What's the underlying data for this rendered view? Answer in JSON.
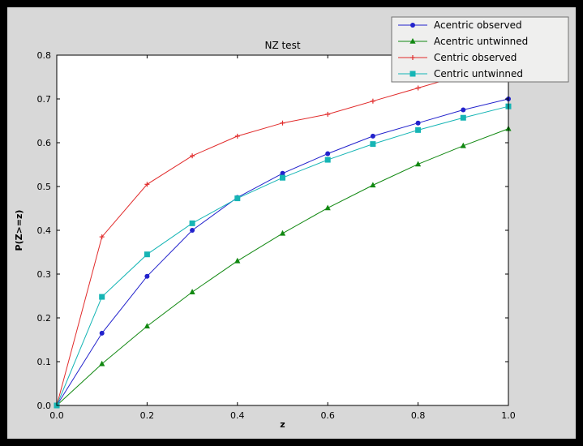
{
  "colors": {
    "frame": "#000000",
    "figure_bg": "#d8d8d8",
    "plot_bg": "#ffffff",
    "axis": "#000000",
    "legend_bg": "#efefee",
    "legend_border": "#707070"
  },
  "chart_data": {
    "type": "line",
    "title": "NZ test",
    "xlabel": "z",
    "ylabel": "P(Z>=z)",
    "xlim": [
      0.0,
      1.0
    ],
    "ylim": [
      0.0,
      0.8
    ],
    "xticks": [
      0.0,
      0.2,
      0.4,
      0.6,
      0.8,
      1.0
    ],
    "yticks": [
      0.0,
      0.1,
      0.2,
      0.3,
      0.4,
      0.5,
      0.6,
      0.7,
      0.8
    ],
    "grid": false,
    "legend_position": "upper right",
    "x": [
      0.0,
      0.1,
      0.2,
      0.3,
      0.4,
      0.5,
      0.6,
      0.7,
      0.8,
      0.9,
      1.0
    ],
    "series": [
      {
        "name": "Acentric observed",
        "color": "#2222cc",
        "marker": "circle",
        "values": [
          0.0,
          0.165,
          0.295,
          0.4,
          0.475,
          0.53,
          0.575,
          0.615,
          0.645,
          0.675,
          0.7
        ]
      },
      {
        "name": "Acentric untwinned",
        "color": "#118811",
        "marker": "triangle",
        "values": [
          0.0,
          0.095,
          0.181,
          0.259,
          0.33,
          0.393,
          0.451,
          0.503,
          0.551,
          0.593,
          0.632
        ]
      },
      {
        "name": "Centric observed",
        "color": "#e12b2b",
        "marker": "plus",
        "values": [
          0.0,
          0.385,
          0.505,
          0.57,
          0.615,
          0.645,
          0.665,
          0.695,
          0.725,
          0.755,
          0.78
        ]
      },
      {
        "name": "Centric untwinned",
        "color": "#16b5b5",
        "marker": "square",
        "values": [
          0.0,
          0.248,
          0.345,
          0.416,
          0.473,
          0.52,
          0.561,
          0.597,
          0.629,
          0.657,
          0.683
        ]
      }
    ]
  }
}
